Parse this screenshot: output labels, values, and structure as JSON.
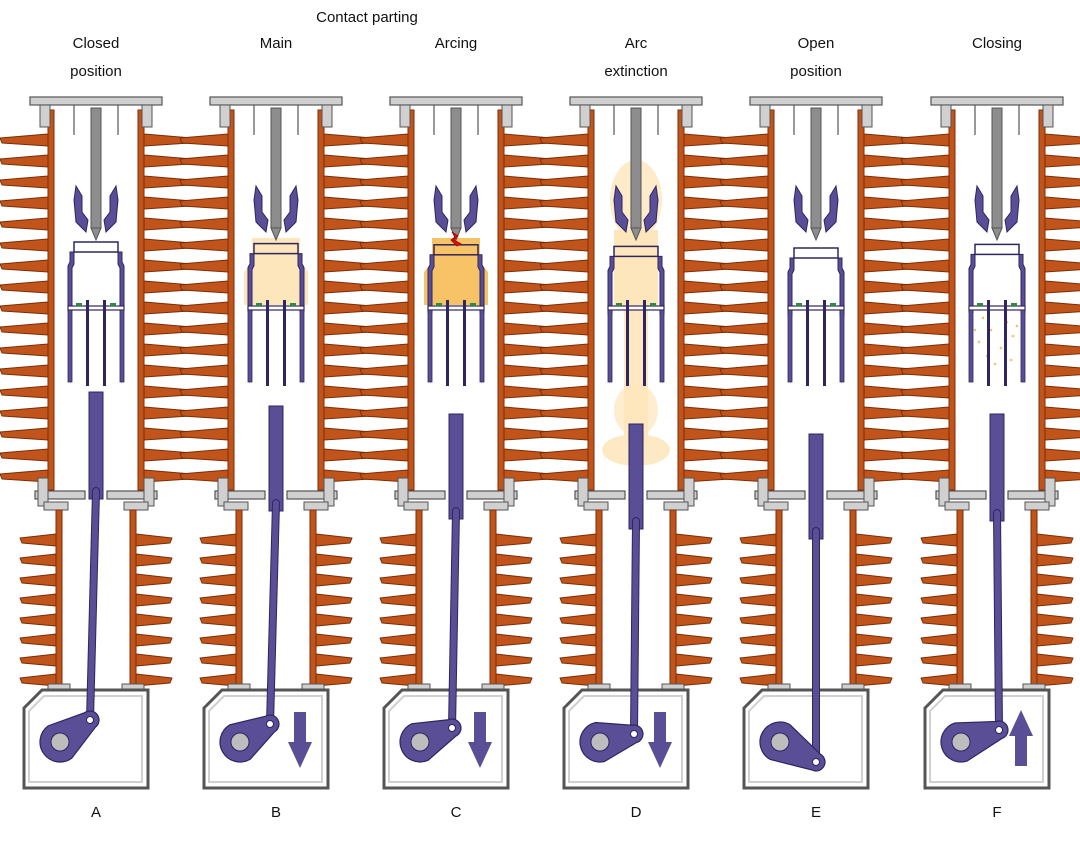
{
  "figure": {
    "group_title": "Contact parting",
    "panels": [
      {
        "id": "A",
        "label_lines": [
          "Closed",
          "position"
        ],
        "letter": "A",
        "stage": "closed",
        "motion": "none",
        "gas": "none"
      },
      {
        "id": "B",
        "label_lines": [
          "Main"
        ],
        "letter": "B",
        "stage": "main",
        "motion": "down",
        "gas": "compressed"
      },
      {
        "id": "C",
        "label_lines": [
          "Arcing"
        ],
        "letter": "C",
        "stage": "arcing",
        "motion": "down",
        "gas": "hot"
      },
      {
        "id": "D",
        "label_lines": [
          "Arc",
          "extinction"
        ],
        "letter": "D",
        "stage": "extinction",
        "motion": "down",
        "gas": "blast"
      },
      {
        "id": "E",
        "label_lines": [
          "Open",
          "position"
        ],
        "letter": "E",
        "stage": "open",
        "motion": "none",
        "gas": "none"
      },
      {
        "id": "F",
        "label_lines": [
          "Closing"
        ],
        "letter": "F",
        "stage": "closing",
        "motion": "up",
        "gas": "dots"
      }
    ],
    "colors": {
      "porcelain": "#c0541a",
      "porcelain_edge": "#7a2e08",
      "mechanism": "#5a4e96",
      "mechanism_edge": "#2d2660",
      "fixed_contact": "#8d8d8d",
      "flange": "#d0d0d0",
      "flange_edge": "#555555",
      "gas_light": "#fde6bb",
      "gas_hot": "#f8c266",
      "arc": "#e01010",
      "nozzle_mark": "#2e8a3c"
    }
  }
}
